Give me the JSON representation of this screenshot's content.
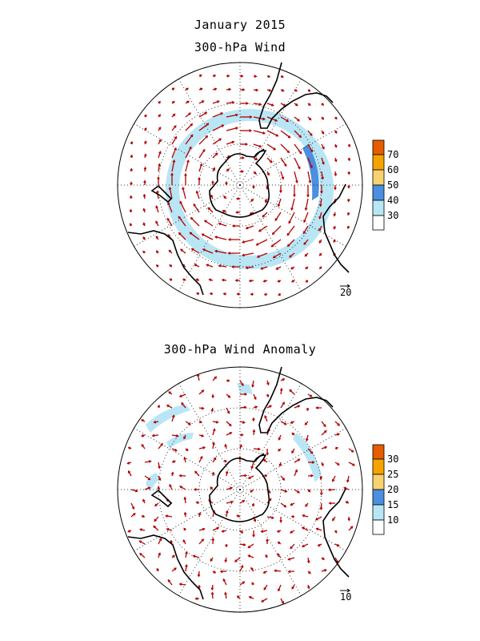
{
  "header": {
    "date": "January 2015",
    "panel1_title": "300-hPa Wind",
    "panel2_title": "300-hPa Wind Anomaly"
  },
  "panel1": {
    "reference_vector": "20",
    "colorbar": {
      "labels": [
        "70",
        "60",
        "50",
        "40",
        "30"
      ],
      "colors": [
        "#e65c00",
        "#f5a300",
        "#f7d26e",
        "#4a8fe0",
        "#b9e6f5",
        "#ffffff"
      ]
    }
  },
  "panel2": {
    "reference_vector": "10",
    "colorbar": {
      "labels": [
        "30",
        "25",
        "20",
        "15",
        "10"
      ],
      "colors": [
        "#e65c00",
        "#f5a300",
        "#f7d26e",
        "#4a8fe0",
        "#b9e6f5",
        "#ffffff"
      ]
    }
  },
  "style": {
    "vector_color": "#b30000",
    "coast_color": "#000000",
    "jet_light": "#b9e6f5",
    "jet_strong": "#4a8fe0"
  }
}
